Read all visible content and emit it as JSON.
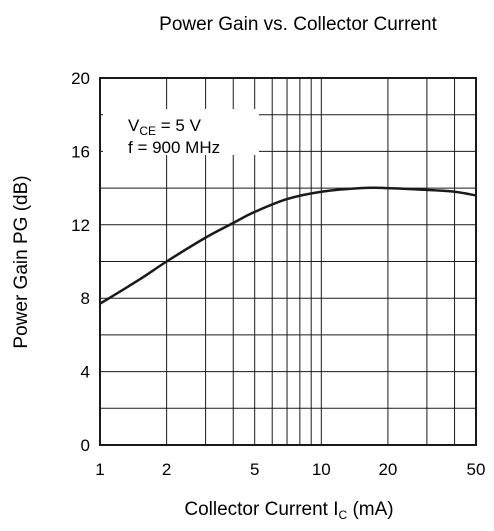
{
  "chart_data": {
    "type": "line",
    "title": "Power Gain vs. Collector Current",
    "xlabel": {
      "prefix": "Collector Current  I",
      "sub": "C",
      "suffix": "  (mA)"
    },
    "ylabel": "Power Gain  PG  (dB)",
    "x_scale": "log",
    "xlim": [
      1,
      50
    ],
    "ylim": [
      0,
      20
    ],
    "x_ticks": [
      1,
      2,
      5,
      10,
      20,
      50
    ],
    "x_tick_labels": [
      "1",
      "2",
      "5",
      "10",
      "20",
      "50"
    ],
    "y_ticks": [
      0,
      4,
      8,
      12,
      16,
      20
    ],
    "y_tick_labels": [
      "0",
      "4",
      "8",
      "12",
      "16",
      "20"
    ],
    "grid": true,
    "annotations": [
      {
        "prefix": "V",
        "sub": "CE",
        "suffix": " = 5 V"
      },
      {
        "prefix": "f = 900 MHz",
        "sub": "",
        "suffix": ""
      }
    ],
    "series": [
      {
        "x": [
          1,
          1.5,
          2,
          3,
          4,
          5,
          7,
          10,
          15,
          20,
          30,
          40,
          50
        ],
        "y": [
          7.7,
          9.0,
          10.0,
          11.3,
          12.1,
          12.7,
          13.4,
          13.8,
          14.0,
          14.0,
          13.9,
          13.8,
          13.6
        ]
      }
    ]
  }
}
